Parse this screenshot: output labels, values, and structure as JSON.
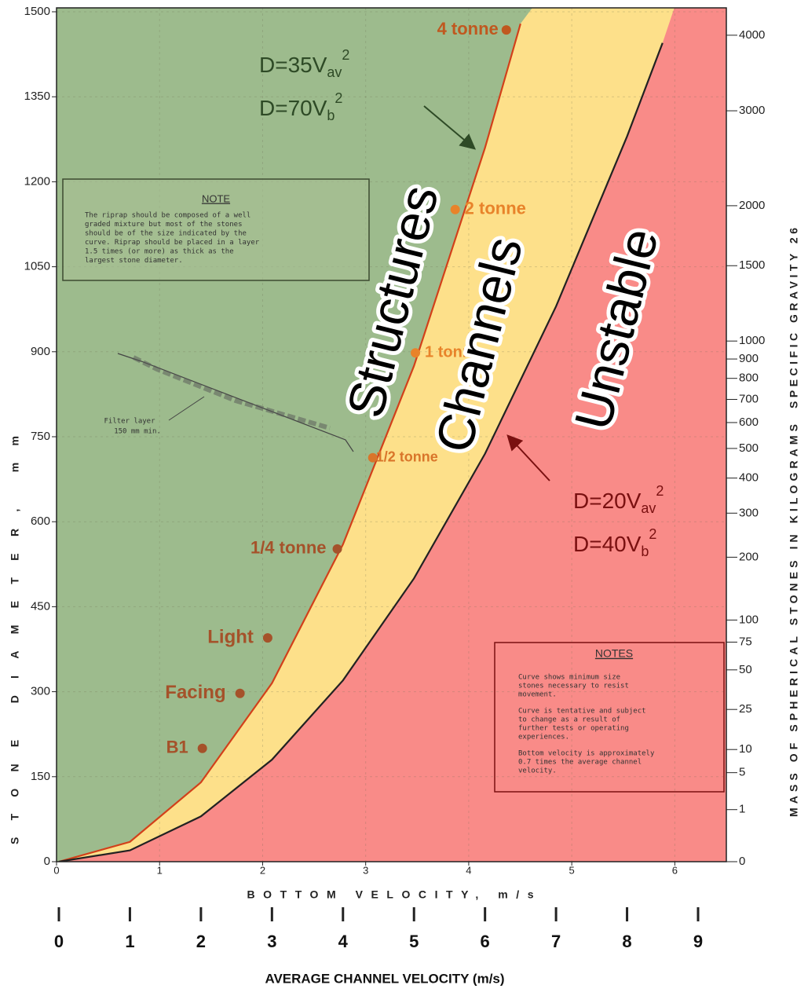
{
  "chart_data": {
    "type": "line",
    "y_label": "STONE DIAMETER, mm",
    "x_label": "BOTTOM VELOCITY, m/s",
    "x2_label": "AVERAGE CHANNEL VELOCITY (m/s)",
    "y2_label": "MASS OF SPHERICAL STONES IN KILOGRAMS",
    "y2_note": "SPECIFIC GRAVITY 26",
    "xlim": [
      0,
      6.5
    ],
    "xticks": [
      0,
      1,
      2,
      3,
      4,
      5,
      6
    ],
    "x2lim": [
      0,
      9
    ],
    "x2ticks": [
      0,
      1,
      2,
      3,
      4,
      5,
      6,
      7,
      8,
      9
    ],
    "ylim": [
      0,
      1500
    ],
    "yticks": [
      0,
      150,
      300,
      450,
      600,
      750,
      900,
      1050,
      1200,
      1350,
      1500
    ],
    "y2lim": [
      0,
      4350
    ],
    "y2scale": "cube-root",
    "y2ticks": [
      0,
      1,
      5,
      10,
      25,
      50,
      75,
      100,
      200,
      300,
      400,
      500,
      600,
      700,
      800,
      900,
      1000,
      1500,
      2000,
      3000,
      4000
    ],
    "grid": true,
    "zones": [
      {
        "name": "Structures",
        "color": "#9dbb8d"
      },
      {
        "name": "Channels",
        "color": "#fde08a"
      },
      {
        "name": "Unstable",
        "color": "#f98b88"
      }
    ],
    "series": [
      {
        "color": "#d2401a",
        "x": [
          0,
          1,
          2,
          3,
          4,
          5,
          6,
          6.5
        ],
        "values": [
          0,
          35,
          140,
          315,
          560,
          875,
          1260,
          1479
        ],
        "labels": [
          {
            "text": "D=35V",
            "sub": "av",
            "sup": "2"
          },
          {
            "text": "D=70V",
            "sub": "b",
            "sup": "2"
          }
        ]
      },
      {
        "color": "#222222",
        "x": [
          0,
          1,
          2,
          3,
          4,
          5,
          6,
          7,
          8,
          8.5
        ],
        "values": [
          0,
          20,
          80,
          180,
          320,
          500,
          720,
          980,
          1280,
          1445
        ],
        "labels": [
          {
            "text": "D=20V",
            "sub": "av",
            "sup": "2"
          },
          {
            "text": "D=40V",
            "sub": "b",
            "sup": "2"
          }
        ]
      }
    ],
    "points": {
      "labels": [
        "4 tonne",
        "2 tonne",
        "1 tonne",
        "1/2 tonne",
        "1/4 tonne",
        "Light",
        "Facing",
        "B1"
      ],
      "x": [
        6.3,
        5.58,
        5.02,
        4.42,
        3.92,
        2.94,
        2.55,
        2.02
      ],
      "values": [
        1468,
        1151,
        898,
        713,
        552,
        395,
        297,
        200
      ],
      "colors": [
        "#c0581f",
        "#e8832a",
        "#e8832a",
        "#d9752a",
        "#a5522a",
        "#a5522a",
        "#a5522a",
        "#a5522a"
      ]
    }
  },
  "note": {
    "title": "NOTE",
    "lines": [
      "The riprap should be composed of a well",
      "graded mixture but most of the stones",
      "should be of the size indicated by the",
      "curve. Riprap should be placed in a layer",
      "1.5 times (or more) as thick as the",
      "largest stone diameter."
    ]
  },
  "filter_label": [
    "Filter layer",
    "150 mm min."
  ],
  "notes": {
    "title": "NOTES",
    "paragraphs": [
      [
        "Curve shows minimum size",
        "stones necessary to resist",
        "movement."
      ],
      [
        "Curve is tentative and subject",
        "to change as a result of",
        "further tests or operating",
        "experiences."
      ],
      [
        "Bottom velocity is approximately",
        "0.7 times the average channel",
        "velocity."
      ]
    ]
  }
}
